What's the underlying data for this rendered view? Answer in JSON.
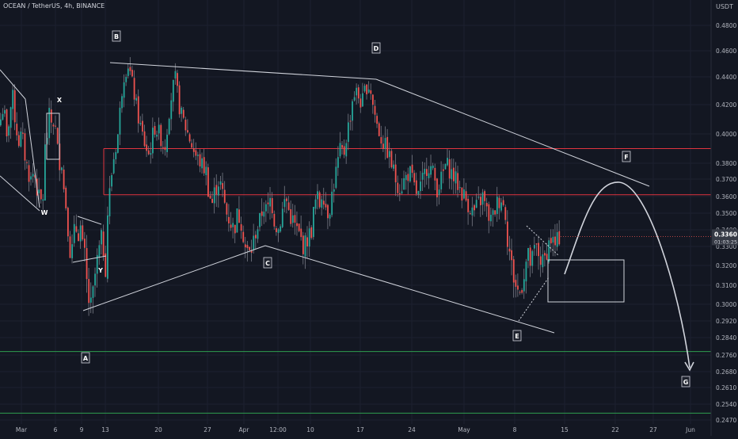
{
  "header": {
    "symbol_title": "OCEAN / TetherUS, 4h, BINANCE",
    "currency": "USDT"
  },
  "colors": {
    "background": "#131722",
    "up": "#26a69a",
    "down": "#ef5350",
    "neutral_wick": "#787b86",
    "trendline": "#d1d4dc",
    "resistance": "#e0343f",
    "support": "#2e9e4f",
    "axis_text": "#b2b5be",
    "price_tag": "#363a45"
  },
  "chart_data": {
    "type": "candlestick",
    "title": "OCEAN / TetherUS, 4h, BINANCE",
    "ylabel": "USDT",
    "ylim": [
      0.247,
      0.493
    ],
    "x_ticks": [
      "Mar",
      "6",
      "9",
      "13",
      "20",
      "27",
      "Apr",
      "12:00",
      "10",
      "17",
      "24",
      "May",
      "8",
      "15",
      "22",
      "27",
      "Jun"
    ],
    "y_ticks": [
      "0.2470",
      "0.2540",
      "0.2610",
      "0.2680",
      "0.2760",
      "0.2840",
      "0.2920",
      "0.3000",
      "0.3100",
      "0.3200",
      "0.3300",
      "0.3400",
      "0.3500",
      "0.3600",
      "0.3700",
      "0.3800",
      "0.4000",
      "0.4200",
      "0.4400",
      "0.4600",
      "0.4800"
    ],
    "current_price": {
      "value": "0.3360",
      "countdown": "01:03:25"
    },
    "horizontal_levels": [
      {
        "kind": "resistance",
        "value": 0.39
      },
      {
        "kind": "resistance",
        "value": 0.361
      },
      {
        "kind": "support",
        "value": 0.2776
      },
      {
        "kind": "support",
        "value": 0.25
      }
    ],
    "wave_labels": [
      "W",
      "X",
      "Y",
      "A",
      "B",
      "C",
      "D",
      "E",
      "F",
      "G"
    ],
    "shapes_description": "Descending upper trendline from B to D extending toward F; lower trendline A to C; lower trendline C to E; white box near X; small triangle pattern near E; projected rectangle and curved arrow path rising to F then falling to G",
    "price_path": [
      [
        0.41,
        0.42,
        0.395,
        0.415,
        0.425,
        0.405,
        0.395,
        0.4,
        0.385,
        0.375,
        0.37,
        0.375,
        0.365,
        0.355,
        0.36
      ],
      [
        0.39,
        0.4,
        0.415,
        0.405,
        0.41,
        0.395,
        0.38,
        0.385,
        0.365,
        0.355,
        0.34,
        0.325,
        0.33,
        0.345,
        0.335,
        0.345,
        0.33,
        0.325,
        0.31,
        0.3,
        0.298,
        0.31,
        0.32,
        0.325,
        0.335,
        0.33,
        0.32
      ],
      [
        0.35,
        0.38,
        0.4,
        0.44,
        0.45,
        0.43,
        0.41,
        0.395,
        0.385,
        0.405,
        0.4,
        0.39,
        0.42,
        0.44,
        0.415,
        0.405,
        0.395,
        0.385,
        0.38,
        0.375
      ],
      [
        0.365,
        0.355,
        0.365,
        0.37,
        0.36,
        0.35,
        0.345,
        0.34,
        0.35,
        0.345,
        0.33,
        0.325,
        0.33,
        0.34,
        0.345,
        0.355,
        0.35,
        0.36,
        0.345,
        0.34,
        0.35,
        0.36,
        0.35,
        0.345,
        0.34,
        0.335,
        0.33,
        0.335,
        0.34
      ],
      [
        0.35,
        0.36,
        0.355,
        0.365,
        0.355,
        0.35,
        0.36,
        0.37,
        0.38,
        0.39,
        0.385,
        0.4,
        0.41,
        0.425,
        0.43,
        0.425,
        0.42,
        0.43,
        0.435,
        0.43
      ],
      [
        0.42,
        0.405,
        0.395,
        0.39,
        0.38,
        0.37,
        0.365,
        0.37,
        0.375,
        0.365,
        0.36,
        0.37,
        0.38,
        0.375,
        0.365,
        0.37,
        0.38,
        0.375,
        0.37,
        0.365,
        0.36,
        0.355,
        0.35,
        0.355,
        0.36,
        0.35,
        0.345,
        0.355,
        0.36,
        0.35
      ],
      [
        0.335,
        0.32,
        0.31,
        0.305,
        0.315,
        0.325,
        0.32,
        0.33,
        0.325,
        0.32,
        0.33,
        0.335,
        0.33,
        0.336
      ]
    ]
  }
}
